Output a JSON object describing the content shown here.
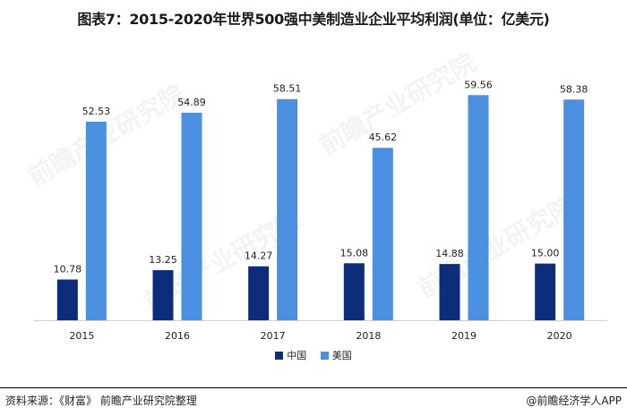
{
  "title": "图表7：2015-2020年世界500强中美制造业企业平均利润(单位：亿美元)",
  "source": "资料来源：《财富》 前瞻产业研究院整理",
  "brand": "@前瞻经济学人APP",
  "watermark": "前瞻产业研究院",
  "colors": {
    "china": "#0d2d7a",
    "usa": "#4a8fe0"
  },
  "chart_data": {
    "type": "bar",
    "categories": [
      "2015",
      "2016",
      "2017",
      "2018",
      "2019",
      "2020"
    ],
    "series": [
      {
        "name": "中国",
        "values": [
          10.78,
          13.25,
          14.27,
          15.08,
          14.88,
          15.0
        ],
        "labels": [
          "10.78",
          "13.25",
          "14.27",
          "15.08",
          "14.88",
          "15.00"
        ]
      },
      {
        "name": "美国",
        "values": [
          52.53,
          54.89,
          58.51,
          45.62,
          59.56,
          58.38
        ],
        "labels": [
          "52.53",
          "54.89",
          "58.51",
          "45.62",
          "59.56",
          "58.38"
        ]
      }
    ],
    "ylim": [
      0,
      62
    ],
    "grid": false,
    "legend_position": "bottom"
  }
}
